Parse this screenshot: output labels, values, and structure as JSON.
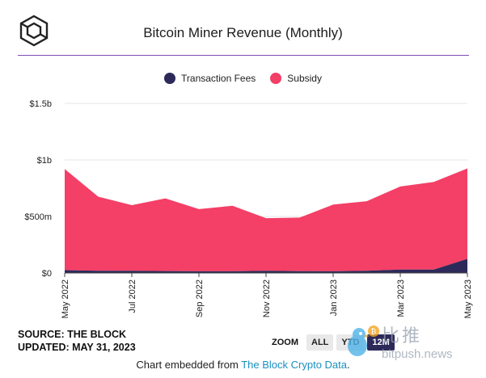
{
  "header": {
    "title": "Bitcoin Miner Revenue (Monthly)"
  },
  "legend": [
    {
      "name": "Transaction Fees",
      "color": "#2d2a5a"
    },
    {
      "name": "Subsidy",
      "color": "#f43f66"
    }
  ],
  "chart_data": {
    "type": "area",
    "stacked": true,
    "title": "Bitcoin Miner Revenue (Monthly)",
    "x": [
      "May 2022",
      "Jun 2022",
      "Jul 2022",
      "Aug 2022",
      "Sep 2022",
      "Oct 2022",
      "Nov 2022",
      "Dec 2022",
      "Jan 2023",
      "Feb 2023",
      "Mar 2023",
      "Apr 2023",
      "May 2023"
    ],
    "x_tick_labels": [
      "May 2022",
      "Jul 2022",
      "Sep 2022",
      "Nov 2022",
      "Jan 2023",
      "Mar 2023",
      "May 2023"
    ],
    "y_tick_labels": [
      "$0",
      "$500m",
      "$1b",
      "$1.5b"
    ],
    "ylim": [
      0,
      1500
    ],
    "y_unit": "millions USD",
    "series": [
      {
        "name": "Transaction Fees",
        "color": "#2d2a5a",
        "values": [
          25,
          20,
          20,
          17,
          15,
          15,
          20,
          16,
          15,
          20,
          30,
          30,
          125
        ]
      },
      {
        "name": "Subsidy",
        "color": "#f43f66",
        "values": [
          895,
          655,
          580,
          643,
          550,
          580,
          465,
          474,
          590,
          615,
          735,
          775,
          800
        ]
      }
    ],
    "grid": true,
    "legend_position": "top-center"
  },
  "footer": {
    "source": "SOURCE: THE BLOCK",
    "updated": "UPDATED: MAY 31, 2023",
    "embed_prefix": "Chart embedded from ",
    "embed_link": "The Block Crypto Data",
    "embed_suffix": "."
  },
  "zoom": {
    "label": "ZOOM",
    "buttons": [
      "ALL",
      "YTD",
      "12M"
    ],
    "active": "12M"
  },
  "watermark": {
    "cn": "比推",
    "url": "bitpush.news"
  }
}
